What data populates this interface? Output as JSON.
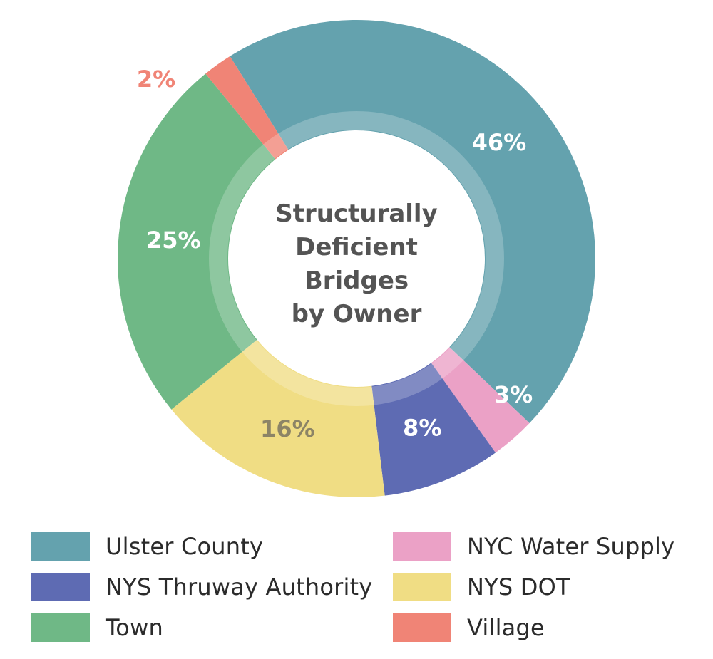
{
  "chart_data": {
    "type": "pie",
    "title": "Structurally Deficient Bridges by Owner",
    "title_lines": [
      "Structurally",
      "Deficient",
      "Bridges",
      "by Owner"
    ],
    "unit": "%",
    "slices": [
      {
        "name": "Ulster County",
        "value": 46,
        "label": "46%",
        "color": "#64a2ae",
        "label_color": "#ffffff"
      },
      {
        "name": "NYC Water Supply",
        "value": 3,
        "label": "3%",
        "color": "#eba1c6",
        "label_color": "#ffffff"
      },
      {
        "name": "NYS Thruway Authority",
        "value": 8,
        "label": "8%",
        "color": "#5e6bb3",
        "label_color": "#ffffff"
      },
      {
        "name": "NYS DOT",
        "value": 16,
        "label": "16%",
        "color": "#f0dd84",
        "label_color": "#8c8466"
      },
      {
        "name": "Town",
        "value": 25,
        "label": "25%",
        "color": "#6fb886",
        "label_color": "#ffffff"
      },
      {
        "name": "Village",
        "value": 2,
        "label": "2%",
        "color": "#f08476",
        "label_color": "#f08476"
      }
    ],
    "legend_position": "bottom"
  },
  "legend": [
    {
      "label": "Ulster County",
      "color": "#64a2ae"
    },
    {
      "label": "NYS Thruway Authority",
      "color": "#5e6bb3"
    },
    {
      "label": "Town",
      "color": "#6fb886"
    },
    {
      "label": "NYC Water Supply",
      "color": "#eba1c6"
    },
    {
      "label": "NYS DOT",
      "color": "#f0dd84"
    },
    {
      "label": "Village",
      "color": "#f08476"
    }
  ],
  "colors": {
    "title_text": "#545454"
  }
}
